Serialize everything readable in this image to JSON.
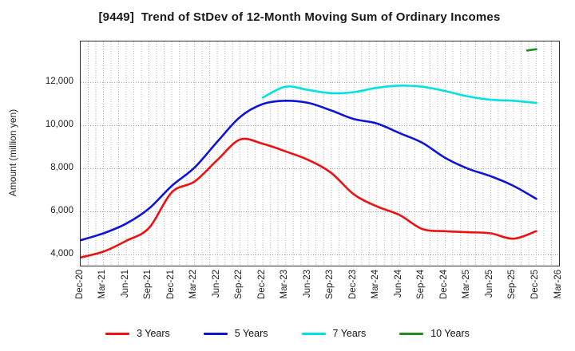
{
  "title": "[9449]  Trend of StDev of 12-Month Moving Sum of Ordinary Incomes",
  "y_axis": {
    "label": "Amount (million yen)",
    "tick_values": [
      4000,
      6000,
      8000,
      10000,
      12000
    ],
    "tick_labels": [
      "4,000",
      "6,000",
      "8,000",
      "10,000",
      "12,000"
    ]
  },
  "x_axis": {
    "tick_labels": [
      "Dec-20",
      "Mar-21",
      "Jun-21",
      "Sep-21",
      "Dec-21",
      "Mar-22",
      "Jun-22",
      "Sep-22",
      "Dec-22",
      "Mar-23",
      "Jun-23",
      "Sep-23",
      "Dec-23",
      "Mar-24",
      "Jun-24",
      "Sep-24",
      "Dec-24",
      "Mar-25",
      "Jun-25",
      "Sep-25",
      "Dec-25",
      "Mar-26"
    ],
    "months_per_tick": 3,
    "total_months": 63
  },
  "legend": {
    "items": [
      {
        "label": "3 Years",
        "color": "#ee1111"
      },
      {
        "label": "5 Years",
        "color": "#0f14d8"
      },
      {
        "label": "7 Years",
        "color": "#00e2e2"
      },
      {
        "label": "10 Years",
        "color": "#228b22"
      }
    ]
  },
  "chart_data": {
    "type": "line",
    "title": "[9449]  Trend of StDev of 12-Month Moving Sum of Ordinary Incomes",
    "xlabel": "",
    "ylabel": "Amount (million yen)",
    "ylim": [
      3500,
      13900
    ],
    "grid": "dotted, monthly vertical lines and horizontal lines at each y tick",
    "legend_position": "bottom",
    "categories": [
      "Dec-20",
      "Mar-21",
      "Jun-21",
      "Sep-21",
      "Dec-21",
      "Mar-22",
      "Jun-22",
      "Sep-22",
      "Dec-22",
      "Mar-23",
      "Jun-23",
      "Sep-23",
      "Dec-23",
      "Mar-24",
      "Jun-24",
      "Sep-24",
      "Dec-24",
      "Mar-25",
      "Jun-25",
      "Sep-25",
      "Dec-25",
      "Mar-26"
    ],
    "series": [
      {
        "name": "3 Years",
        "color": "#ee1111",
        "x_months": [
          0,
          3,
          6,
          9,
          12,
          15,
          18,
          21,
          24,
          27,
          30,
          33,
          36,
          39,
          42,
          45,
          48,
          51,
          54,
          57,
          60
        ],
        "values": [
          3880,
          4150,
          4650,
          5250,
          6900,
          7400,
          8400,
          9350,
          9150,
          8800,
          8400,
          7800,
          6800,
          6250,
          5850,
          5200,
          5100,
          5050,
          5000,
          4750,
          5100
        ]
      },
      {
        "name": "5 Years",
        "color": "#0f14d8",
        "x_months": [
          0,
          3,
          6,
          9,
          12,
          15,
          18,
          21,
          24,
          27,
          30,
          33,
          36,
          39,
          42,
          45,
          48,
          51,
          54,
          57,
          60
        ],
        "values": [
          4680,
          5000,
          5450,
          6150,
          7200,
          8050,
          9250,
          10400,
          11000,
          11150,
          11050,
          10700,
          10300,
          10100,
          9650,
          9200,
          8500,
          8000,
          7650,
          7200,
          6600
        ]
      },
      {
        "name": "7 Years",
        "color": "#00e2e2",
        "x_months": [
          24,
          27,
          30,
          33,
          36,
          39,
          42,
          45,
          48,
          51,
          54,
          57,
          60
        ],
        "values": [
          11300,
          11800,
          11650,
          11500,
          11550,
          11750,
          11850,
          11800,
          11600,
          11350,
          11200,
          11150,
          11050
        ]
      },
      {
        "name": "10 Years",
        "color": "#228b22",
        "x_months": [
          58.8,
          60
        ],
        "values": [
          13480,
          13540
        ]
      }
    ]
  }
}
